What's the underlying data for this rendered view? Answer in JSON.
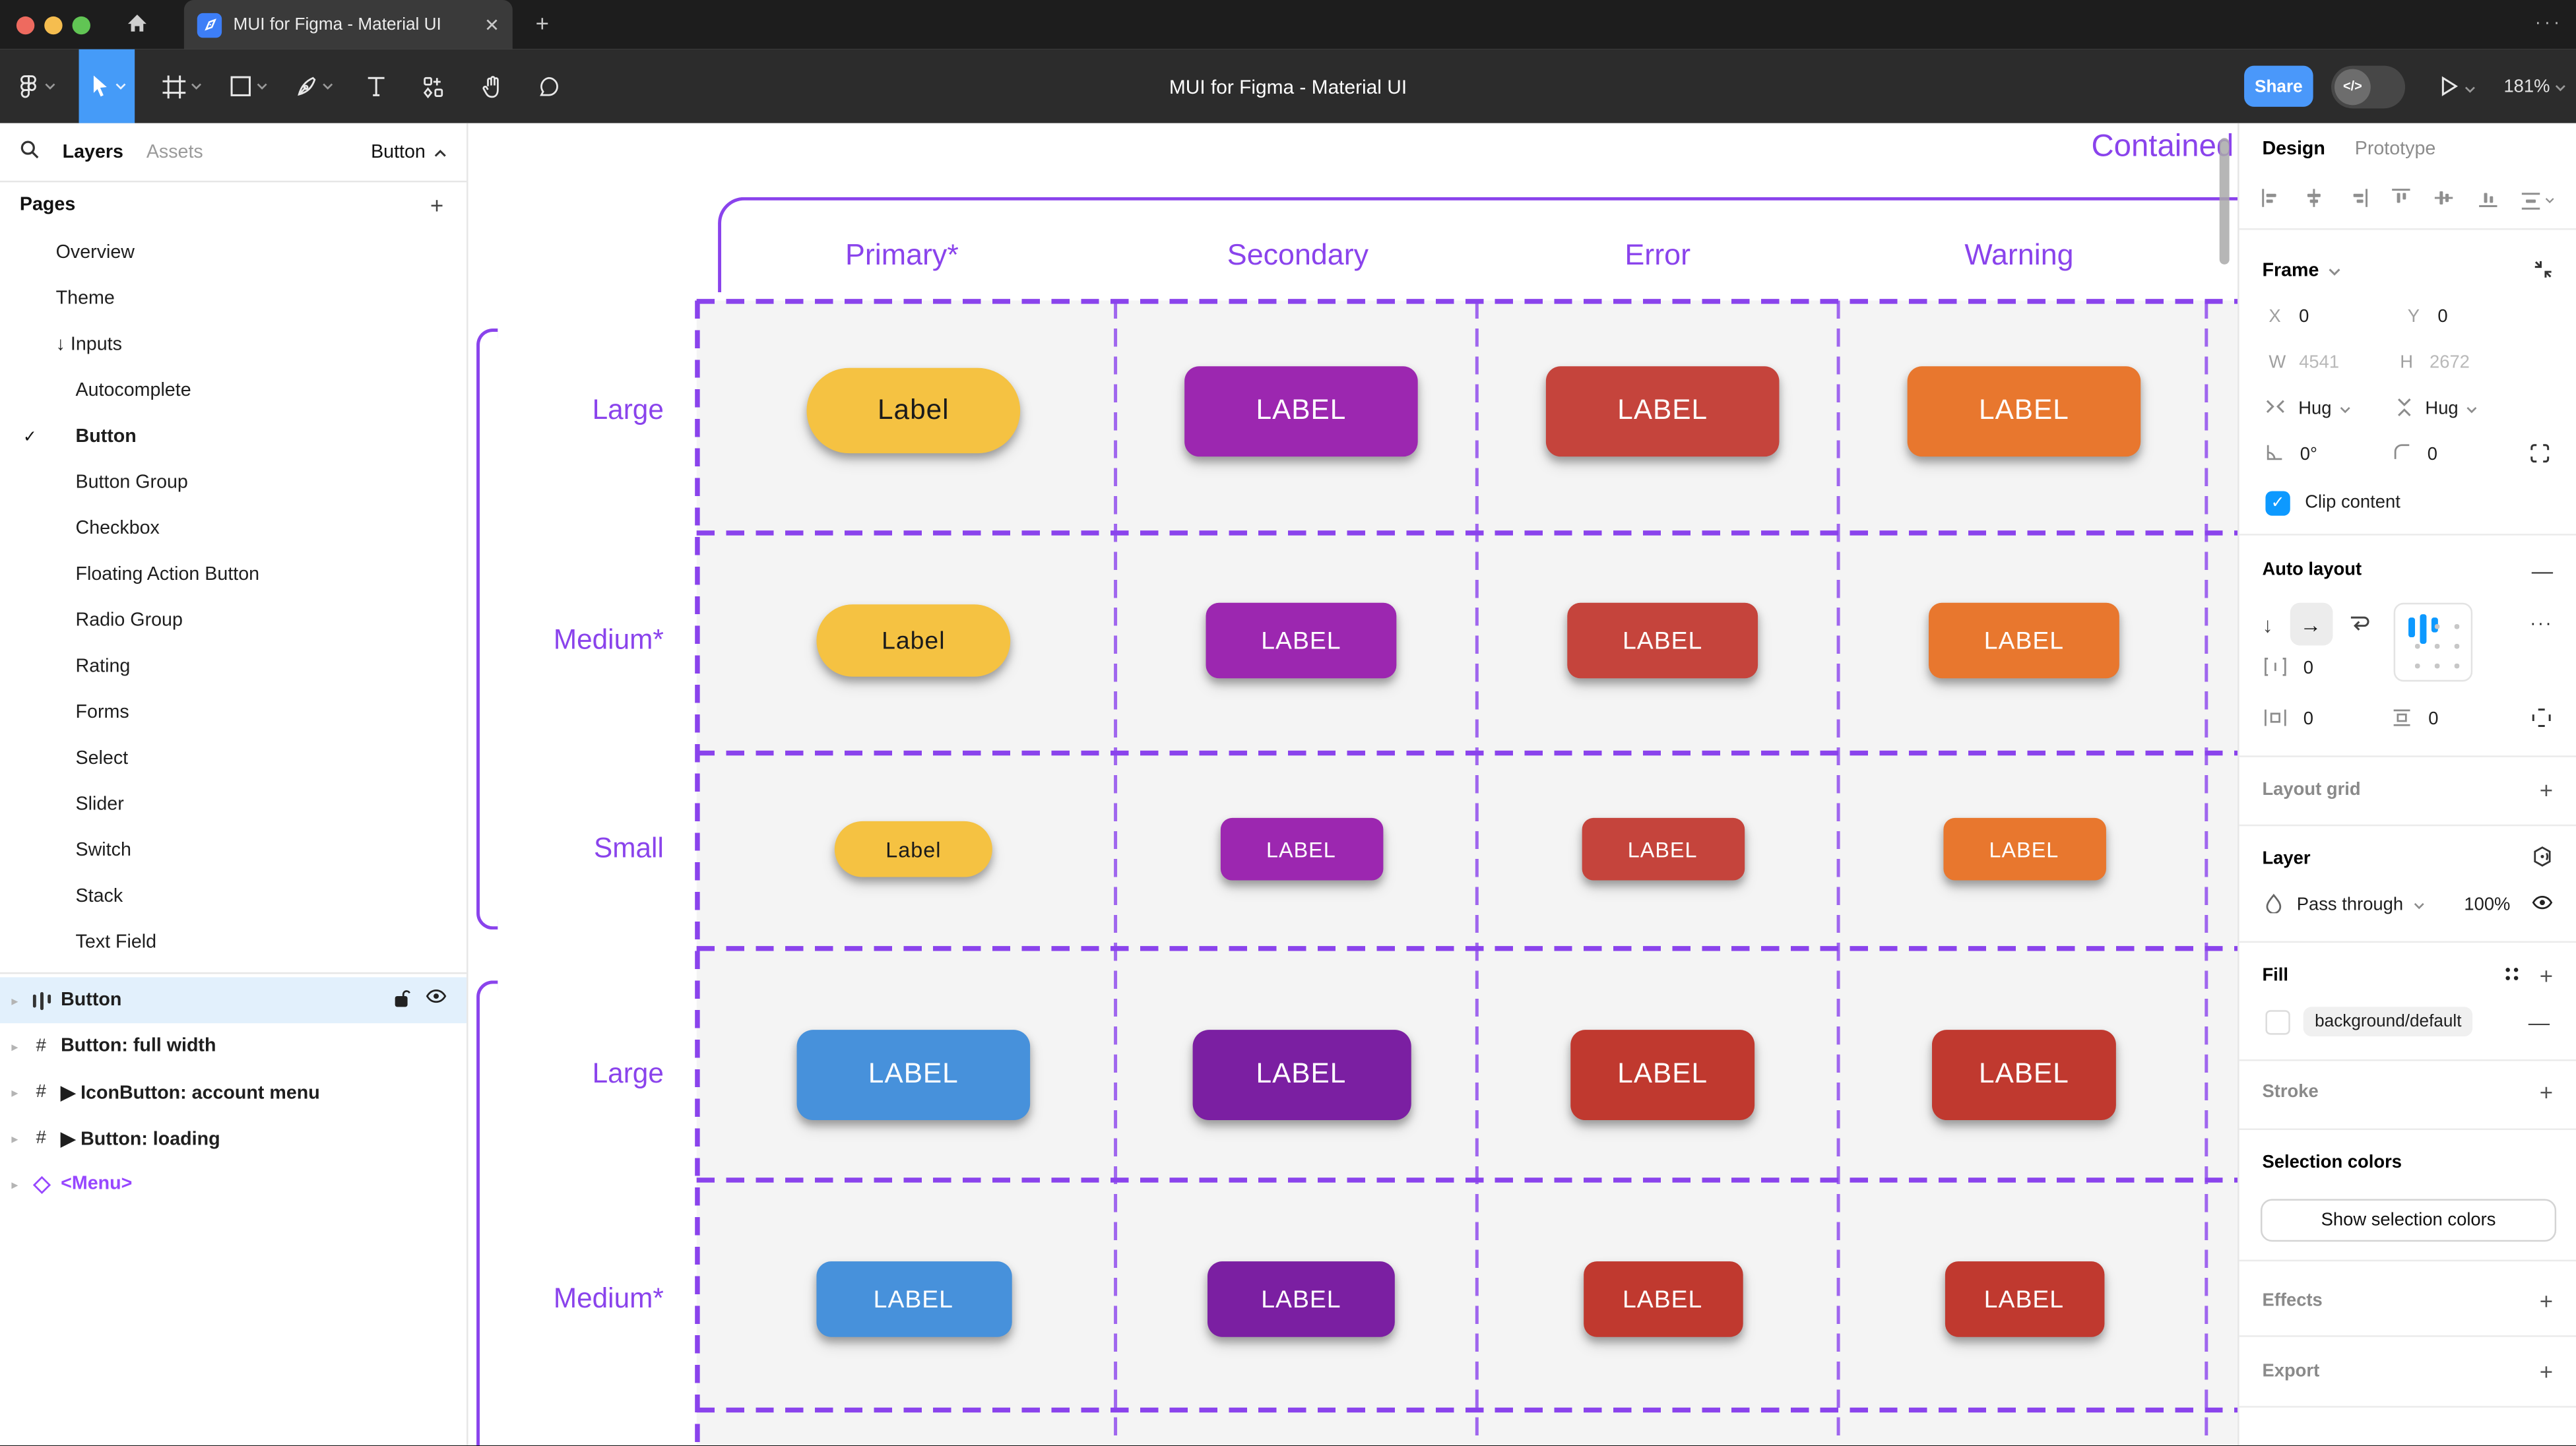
{
  "window": {
    "traffic_lights": [
      "#ee6a5f",
      "#f5bd4f",
      "#61c554"
    ],
    "tab_title": "MUI for Figma - Material UI",
    "close_glyph": "✕",
    "new_tab_glyph": "+",
    "window_dots": "···"
  },
  "toolbar": {
    "title": "MUI for Figma - Material UI",
    "share_label": "Share",
    "dev_toggle_glyph": "</>",
    "zoom_level": "181%",
    "accent": "#459bf8",
    "share_color": "#4a98fa"
  },
  "left_panel": {
    "tabs": {
      "layers": "Layers",
      "assets": "Assets"
    },
    "page_selector": "Button",
    "pages_header": "Pages",
    "pages": [
      {
        "label": "Overview",
        "indent": 0
      },
      {
        "label": "Theme",
        "indent": 0
      },
      {
        "label": "Inputs",
        "indent": 0,
        "prefix": "↓"
      },
      {
        "label": "Autocomplete",
        "indent": 1
      },
      {
        "label": "Button",
        "indent": 1,
        "checked": true,
        "bold": true
      },
      {
        "label": "Button Group",
        "indent": 1
      },
      {
        "label": "Checkbox",
        "indent": 1
      },
      {
        "label": "Floating Action Button",
        "indent": 1
      },
      {
        "label": "Radio Group",
        "indent": 1
      },
      {
        "label": "Rating",
        "indent": 1
      },
      {
        "label": "Forms",
        "indent": 1
      },
      {
        "label": "Select",
        "indent": 1
      },
      {
        "label": "Slider",
        "indent": 1
      },
      {
        "label": "Switch",
        "indent": 1
      },
      {
        "label": "Stack",
        "indent": 1
      },
      {
        "label": "Text Field",
        "indent": 1
      }
    ],
    "layers": [
      {
        "name": "Button",
        "icon": "auto-layout",
        "selected": true
      },
      {
        "name": "Button: full width",
        "icon": "frame"
      },
      {
        "name": "IconButton: account menu",
        "icon": "frame",
        "play": true
      },
      {
        "name": "Button: loading",
        "icon": "frame",
        "play": true
      },
      {
        "name": "<Menu>",
        "icon": "component",
        "purple": true
      }
    ],
    "selected_bg": "#e2f0fc",
    "component_purple": "#9747ff"
  },
  "canvas": {
    "accent": "#8a43ec",
    "frame_fill": "#f4f4f4",
    "group_title": "Contained",
    "columns": [
      "Primary*",
      "Secondary",
      "Error",
      "Warning"
    ],
    "rows": [
      {
        "label": "Large",
        "buttons": [
          {
            "text": "Label",
            "color": "#f5c242",
            "text_color": "#1b1b1b"
          },
          {
            "text": "LABEL",
            "color": "#9c27b0",
            "text_color": "#ffffff"
          },
          {
            "text": "LABEL",
            "color": "#c5443c",
            "text_color": "#ffffff"
          },
          {
            "text": "LABEL",
            "color": "#e8772e",
            "text_color": "#ffffff"
          }
        ]
      },
      {
        "label": "Medium*",
        "buttons": [
          {
            "text": "Label",
            "color": "#f5c242",
            "text_color": "#1b1b1b"
          },
          {
            "text": "LABEL",
            "color": "#9c27b0",
            "text_color": "#ffffff"
          },
          {
            "text": "LABEL",
            "color": "#c5443c",
            "text_color": "#ffffff"
          },
          {
            "text": "LABEL",
            "color": "#e8772e",
            "text_color": "#ffffff"
          }
        ]
      },
      {
        "label": "Small",
        "buttons": [
          {
            "text": "Label",
            "color": "#f5c242",
            "text_color": "#1b1b1b"
          },
          {
            "text": "LABEL",
            "color": "#9c27b0",
            "text_color": "#ffffff"
          },
          {
            "text": "LABEL",
            "color": "#c5443c",
            "text_color": "#ffffff"
          },
          {
            "text": "LABEL",
            "color": "#e8772e",
            "text_color": "#ffffff"
          }
        ]
      },
      {
        "label": "Large",
        "buttons": [
          {
            "text": "LABEL",
            "color": "#4791db",
            "text_color": "#ffffff"
          },
          {
            "text": "LABEL",
            "color": "#7b1fa2",
            "text_color": "#ffffff"
          },
          {
            "text": "LABEL",
            "color": "#c0392f",
            "text_color": "#ffffff"
          },
          {
            "text": "LABEL",
            "color": "#c0392f",
            "text_color": "#ffffff"
          }
        ]
      },
      {
        "label": "Medium*",
        "buttons": [
          {
            "text": "LABEL",
            "color": "#4791db",
            "text_color": "#ffffff"
          },
          {
            "text": "LABEL",
            "color": "#7b1fa2",
            "text_color": "#ffffff"
          },
          {
            "text": "LABEL",
            "color": "#c0392f",
            "text_color": "#ffffff"
          },
          {
            "text": "LABEL",
            "color": "#c0392f",
            "text_color": "#ffffff"
          }
        ]
      }
    ]
  },
  "right_panel": {
    "tabs": {
      "design": "Design",
      "prototype": "Prototype"
    },
    "frame": {
      "title": "Frame",
      "x_label": "X",
      "x_value": "0",
      "y_label": "Y",
      "y_value": "0",
      "w_label": "W",
      "w_value": "4541",
      "h_label": "H",
      "h_value": "2672",
      "hug_h": "Hug",
      "hug_v": "Hug",
      "rotation": "0°",
      "corner_radius": "0",
      "clip_label": "Clip content",
      "checkbox_color": "#0d99ff"
    },
    "auto_layout": {
      "title": "Auto layout",
      "gap_value": "0",
      "padding_h_value": "0",
      "padding_v_value": "0",
      "more_glyph": "···",
      "grid_accent": "#0d99ff"
    },
    "layout_grid_title": "Layout grid",
    "layer": {
      "title": "Layer",
      "blend_mode": "Pass through",
      "opacity": "100%"
    },
    "fill": {
      "title": "Fill",
      "token": "background/default"
    },
    "stroke_title": "Stroke",
    "selection_colors": {
      "title": "Selection colors",
      "button_label": "Show selection colors"
    },
    "effects_title": "Effects",
    "export_title": "Export"
  }
}
